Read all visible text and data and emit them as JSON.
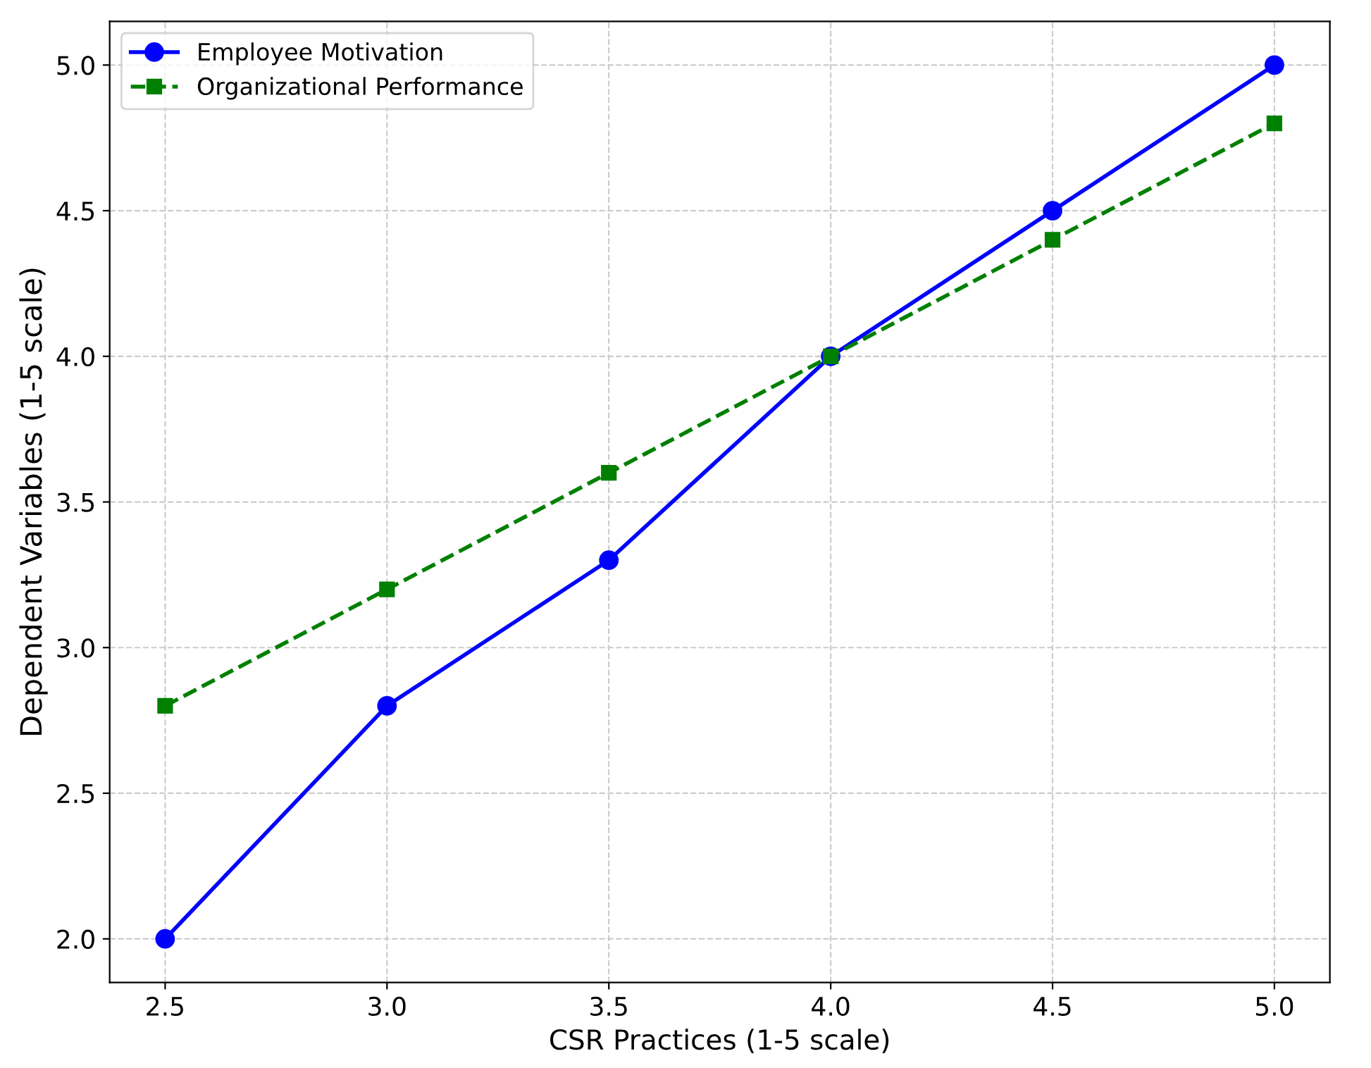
{
  "chart_data": {
    "type": "line",
    "xlabel": "CSR Practices (1-5 scale)",
    "ylabel": "Dependent Variables (1-5 scale)",
    "x": [
      2.5,
      3.0,
      3.5,
      4.0,
      4.5,
      5.0
    ],
    "series": [
      {
        "name": "Employee Motivation",
        "color": "#0000ff",
        "values": [
          2.0,
          2.8,
          3.3,
          4.0,
          4.5,
          5.0
        ],
        "marker": "circle",
        "line_style": "solid"
      },
      {
        "name": "Organizational Performance",
        "color": "#008000",
        "values": [
          2.8,
          3.2,
          3.6,
          4.0,
          4.4,
          4.8
        ],
        "marker": "square",
        "line_style": "dashed"
      }
    ],
    "xlim": [
      2.375,
      5.125
    ],
    "xticks": [
      {
        "value": 2.5,
        "label": "2.5"
      },
      {
        "value": 3.0,
        "label": "3.0"
      },
      {
        "value": 3.5,
        "label": "3.5"
      },
      {
        "value": 4.0,
        "label": "4.0"
      },
      {
        "value": 4.5,
        "label": "4.5"
      },
      {
        "value": 5.0,
        "label": "5.0"
      }
    ],
    "ylim": [
      1.85,
      5.15
    ],
    "yticks": [
      {
        "value": 2.0,
        "label": "2.0"
      },
      {
        "value": 2.5,
        "label": "2.5"
      },
      {
        "value": 3.0,
        "label": "3.0"
      },
      {
        "value": 3.5,
        "label": "3.5"
      },
      {
        "value": 4.0,
        "label": "4.0"
      },
      {
        "value": 4.5,
        "label": "4.5"
      },
      {
        "value": 5.0,
        "label": "5.0"
      }
    ],
    "grid": true,
    "legend": "top left"
  }
}
